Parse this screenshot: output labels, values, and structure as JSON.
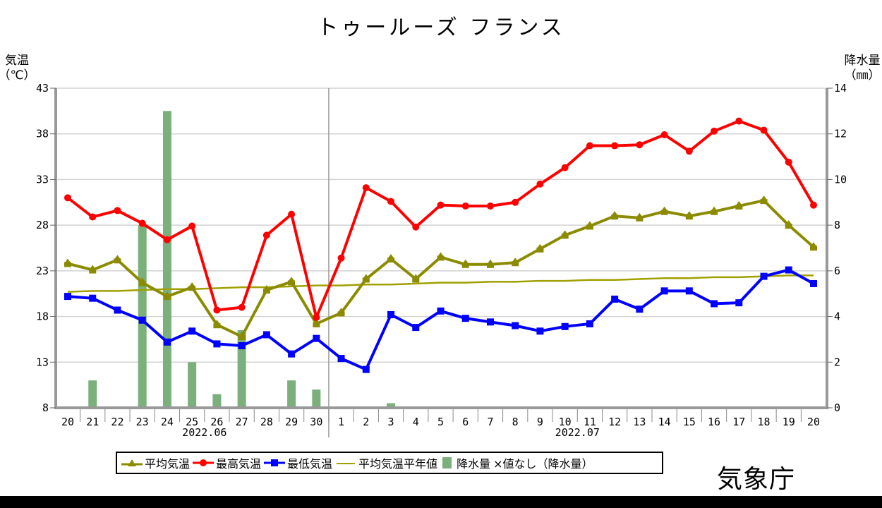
{
  "title": "トゥールーズ フランス",
  "left_axis": {
    "line1": "気温",
    "line2": "（℃）"
  },
  "right_axis": {
    "line1": "降水量",
    "line2": "（㎜）"
  },
  "logo": "気象庁",
  "legend": {
    "items": [
      {
        "label": "平均気温",
        "color": "#8B8B00",
        "marker": "triangle"
      },
      {
        "label": "最高気温",
        "color": "#FF0000",
        "marker": "circle"
      },
      {
        "label": "最低気温",
        "color": "#0000FF",
        "marker": "square"
      },
      {
        "label": "平均気温平年値",
        "color": "#A0A000",
        "marker": "line"
      },
      {
        "label": "降水量",
        "color": "#7BAF7B",
        "marker": "bar"
      },
      {
        "label": "×値なし（降水量）",
        "color": "#000000",
        "marker": "none"
      }
    ]
  },
  "colors": {
    "mean": "#8B8B00",
    "max": "#FF0000",
    "min": "#0000FF",
    "normal": "#A0A000",
    "precip": "#7BAF7B",
    "grid": "#D3D3D3",
    "axis": "#999999"
  },
  "chart_data": {
    "type": "line",
    "title": "トゥールーズ フランス",
    "xlabel": "",
    "ylabel": "気温（℃）",
    "ylabel_right": "降水量（㎜）",
    "ylim": [
      8,
      43
    ],
    "ylim_right": [
      0,
      14
    ],
    "yticks": [
      8,
      13,
      18,
      23,
      28,
      33,
      38,
      43
    ],
    "yticks_right": [
      0,
      2,
      4,
      6,
      8,
      10,
      12,
      14
    ],
    "grid": true,
    "legend_position": "bottom",
    "month_labels": [
      {
        "label": "2022.06",
        "center_index": 5.5
      },
      {
        "label": "2022.07",
        "center_index": 20.5
      }
    ],
    "month_divider_after_index": 10,
    "x": [
      "20",
      "21",
      "22",
      "23",
      "24",
      "25",
      "26",
      "27",
      "28",
      "29",
      "30",
      "1",
      "2",
      "3",
      "4",
      "5",
      "6",
      "7",
      "8",
      "9",
      "10",
      "11",
      "12",
      "13",
      "14",
      "15",
      "16",
      "17",
      "18",
      "19",
      "20"
    ],
    "series": [
      {
        "name": "平均気温",
        "type": "line",
        "axis": "left",
        "values": [
          23.8,
          23.1,
          24.2,
          21.7,
          20.2,
          21.2,
          17.1,
          15.8,
          20.9,
          21.8,
          17.2,
          18.4,
          22.1,
          24.3,
          22.1,
          24.5,
          23.7,
          23.7,
          23.9,
          25.4,
          26.9,
          27.9,
          29.0,
          28.8,
          29.5,
          29.0,
          29.5,
          30.1,
          30.7,
          28.0,
          25.6
        ]
      },
      {
        "name": "最高気温",
        "type": "line",
        "axis": "left",
        "values": [
          31.0,
          28.9,
          29.6,
          28.2,
          26.4,
          27.9,
          18.7,
          19.0,
          26.9,
          29.2,
          17.9,
          24.4,
          32.1,
          30.6,
          27.8,
          30.2,
          30.1,
          30.1,
          30.5,
          32.5,
          34.3,
          36.7,
          36.7,
          36.8,
          37.9,
          36.1,
          38.3,
          39.4,
          38.4,
          34.9,
          30.2
        ]
      },
      {
        "name": "最低気温",
        "type": "line",
        "axis": "left",
        "values": [
          20.2,
          20.0,
          18.7,
          17.6,
          15.2,
          16.4,
          15.0,
          14.8,
          16.0,
          13.9,
          15.6,
          13.4,
          12.2,
          18.2,
          16.8,
          18.6,
          17.8,
          17.4,
          17.0,
          16.4,
          16.9,
          17.2,
          19.9,
          18.8,
          20.8,
          20.8,
          19.4,
          19.5,
          22.4,
          23.1,
          21.6
        ]
      },
      {
        "name": "平均気温平年値",
        "type": "line",
        "axis": "left",
        "values": [
          20.7,
          20.8,
          20.8,
          20.9,
          21.0,
          21.0,
          21.1,
          21.2,
          21.2,
          21.3,
          21.4,
          21.4,
          21.5,
          21.5,
          21.6,
          21.7,
          21.7,
          21.8,
          21.8,
          21.9,
          21.9,
          22.0,
          22.0,
          22.1,
          22.2,
          22.2,
          22.3,
          22.3,
          22.4,
          22.5,
          22.5
        ]
      },
      {
        "name": "降水量",
        "type": "bar",
        "axis": "right",
        "values": [
          0,
          1.2,
          0,
          8.0,
          13.0,
          2.0,
          0.6,
          3.4,
          0,
          1.2,
          0.8,
          0,
          0,
          0.2,
          0,
          0,
          0,
          0,
          0,
          0,
          0,
          0,
          0,
          0,
          0,
          0,
          0,
          0,
          0,
          0,
          0
        ]
      }
    ]
  }
}
